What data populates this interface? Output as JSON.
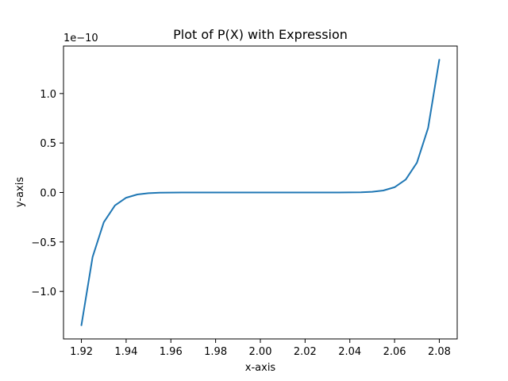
{
  "chart_data": {
    "type": "line",
    "title": "Plot of P(X) with Expression",
    "xlabel": "x-axis",
    "ylabel": "y-axis",
    "y_offset_label": "1e−10",
    "y_scale_exponent": -10,
    "xlim": [
      1.912,
      2.088
    ],
    "ylim": [
      -1.48,
      1.48
    ],
    "x_ticks": [
      1.92,
      1.94,
      1.96,
      1.98,
      2.0,
      2.02,
      2.04,
      2.06,
      2.08
    ],
    "x_tick_labels": [
      "1.92",
      "1.94",
      "1.96",
      "1.98",
      "2.00",
      "2.02",
      "2.04",
      "2.06",
      "2.08"
    ],
    "y_ticks": [
      -1.0,
      -0.5,
      0.0,
      0.5,
      1.0
    ],
    "y_tick_labels": [
      "−1.0",
      "−0.5",
      "0.0",
      "0.5",
      "1.0"
    ],
    "grid": false,
    "series": [
      {
        "color": "#1f77b4",
        "x": [
          1.92,
          1.925,
          1.93,
          1.935,
          1.94,
          1.945,
          1.95,
          1.955,
          1.96,
          1.965,
          1.97,
          1.975,
          1.98,
          1.985,
          1.99,
          1.995,
          2.0,
          2.005,
          2.01,
          2.015,
          2.02,
          2.025,
          2.03,
          2.035,
          2.04,
          2.045,
          2.05,
          2.055,
          2.06,
          2.065,
          2.07,
          2.075,
          2.08
        ],
        "y": [
          -1.342,
          -0.652,
          -0.301,
          -0.131,
          -0.053,
          -0.02,
          -0.0068,
          -0.0021,
          -0.00058,
          -0.00014,
          -2.7e-05,
          -4e-06,
          0.0,
          0.0,
          0.0,
          0.0,
          0.0,
          0.0,
          0.0,
          0.0,
          0.0,
          4e-06,
          2.7e-05,
          0.00014,
          0.00058,
          0.0021,
          0.0068,
          0.02,
          0.053,
          0.131,
          0.301,
          0.652,
          1.342
        ]
      }
    ]
  }
}
